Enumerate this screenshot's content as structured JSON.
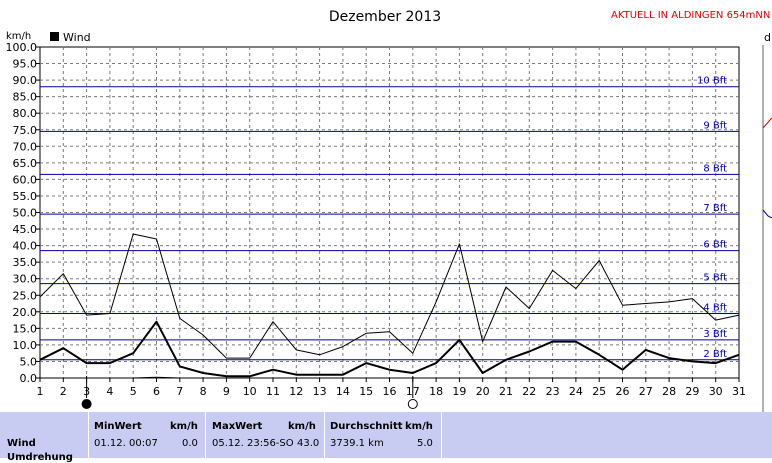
{
  "header": {
    "title": "Dezember 2013",
    "live_link": "AKTUELL IN ALDINGEN 654mNN",
    "right_edge_letter": "d"
  },
  "chart_data": {
    "type": "line",
    "title": "Dezember 2013",
    "ylabel": "km/h",
    "ylim": [
      0,
      100
    ],
    "yticks": [
      "0.0",
      "5.0",
      "10.0",
      "15.0",
      "20.0",
      "25.0",
      "30.0",
      "35.0",
      "40.0",
      "45.0",
      "50.0",
      "55.0",
      "60.0",
      "65.0",
      "70.0",
      "75.0",
      "80.0",
      "85.0",
      "90.0",
      "95.0",
      "100.0"
    ],
    "x": [
      1,
      2,
      3,
      4,
      5,
      6,
      7,
      8,
      9,
      10,
      11,
      12,
      13,
      14,
      15,
      16,
      17,
      18,
      19,
      20,
      21,
      22,
      23,
      24,
      25,
      26,
      27,
      28,
      29,
      30,
      31
    ],
    "xticks": [
      "1",
      "2",
      "3",
      "4",
      "5",
      "6",
      "7",
      "8",
      "9",
      "10",
      "11",
      "12",
      "13",
      "14",
      "15",
      "16",
      "17",
      "18",
      "19",
      "20",
      "21",
      "22",
      "23",
      "24",
      "25",
      "26",
      "27",
      "28",
      "29",
      "30",
      "31"
    ],
    "legend": {
      "label": "Wind",
      "position": "top-left"
    },
    "grid": true,
    "series": [
      {
        "name": "Wind",
        "role": "daily-max",
        "values": [
          24.5,
          31.5,
          19,
          19.5,
          43.5,
          42,
          18,
          13,
          6,
          6,
          17,
          8.5,
          7,
          9.5,
          13.5,
          14,
          7.5,
          23,
          40.5,
          11,
          27.5,
          21,
          32.5,
          27,
          35.5,
          22,
          22.5,
          23,
          24,
          17.5,
          19
        ]
      },
      {
        "name": "Wind",
        "role": "daily-mean",
        "values": [
          5.5,
          9,
          4.5,
          4.5,
          7.5,
          17,
          3.5,
          1.5,
          0.5,
          0.5,
          2.5,
          1,
          1,
          1,
          4.5,
          2.5,
          1.5,
          4.5,
          11.5,
          1.5,
          5.5,
          8,
          11,
          11,
          7,
          2.5,
          8.5,
          6,
          5,
          4.5,
          7
        ]
      },
      {
        "name": "Wind",
        "role": "daily-min",
        "values": [
          0,
          0,
          0,
          0,
          0,
          0.2,
          0,
          0,
          0,
          0,
          0,
          0,
          0,
          0,
          0,
          0,
          0,
          0,
          0,
          0,
          0,
          0,
          0,
          0,
          0,
          0,
          0,
          0,
          0,
          0,
          0
        ]
      }
    ],
    "beaufort_lines": [
      {
        "label": "2 Bft",
        "value": 5.5
      },
      {
        "label": "3 Bft",
        "value": 11.5
      },
      {
        "label": "4 Bft",
        "value": 19.5
      },
      {
        "label": "5 Bft",
        "value": 28.5
      },
      {
        "label": "6 Bft",
        "value": 38.5
      },
      {
        "label": "7 Bft",
        "value": 49.5
      },
      {
        "label": "8 Bft",
        "value": 61.5
      },
      {
        "label": "9 Bft",
        "value": 74.5
      },
      {
        "label": "10 Bft",
        "value": 88
      }
    ],
    "moon_phases": [
      {
        "day": 3,
        "phase": "new-moon"
      },
      {
        "day": 17,
        "phase": "full-moon"
      }
    ],
    "colors": {
      "lines": "#000000",
      "beaufort": "#0000a0",
      "grid": "#7a7a7a",
      "live_link": "#e00000"
    }
  },
  "stats": {
    "row_label": "Wind",
    "row_label_2": "Umdrehung",
    "min": {
      "header": "MinWert",
      "unit": "km/h",
      "datetime": "01.12.  00:07",
      "value": "0.0"
    },
    "max": {
      "header": "MaxWert",
      "unit": "km/h",
      "datetime": "05.12.  23:56-SO",
      "value": "43.0"
    },
    "avg": {
      "header": "Durchschnitt",
      "unit": "km/h",
      "distance": "3739.1 km",
      "value": "5.0"
    }
  }
}
